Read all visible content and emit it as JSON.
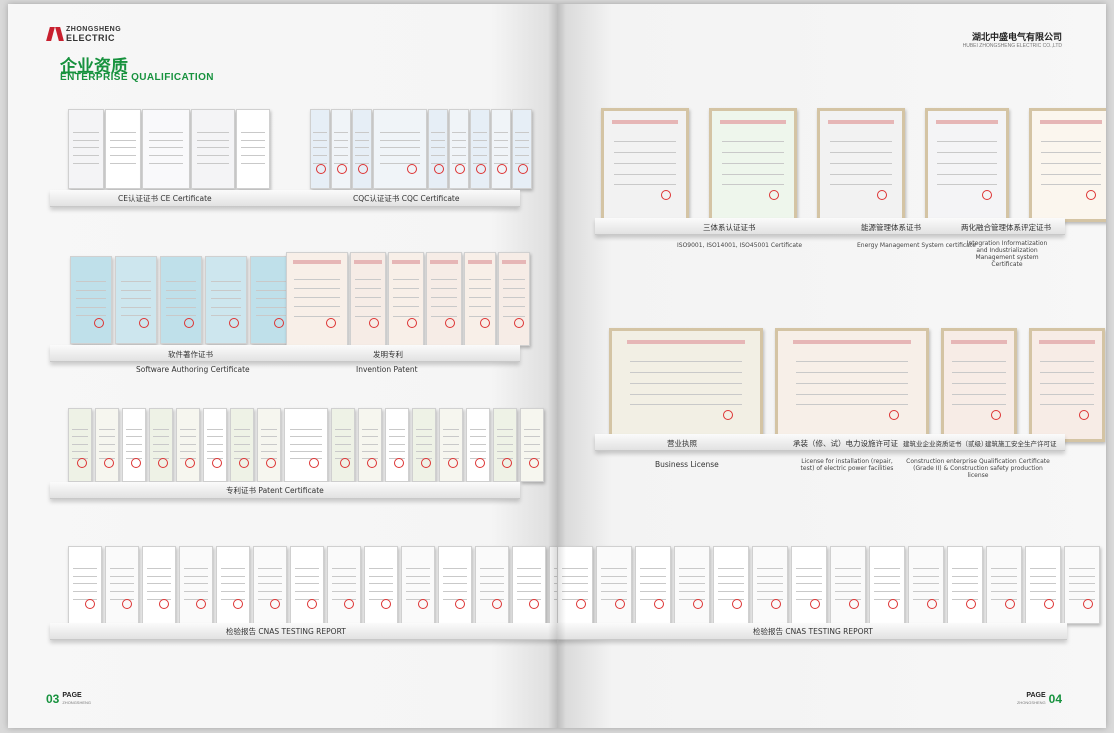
{
  "header": {
    "brand_line1": "ZHONGSHENG",
    "brand_line2": "ELECTRIC",
    "title_cn": "企业资质",
    "title_en": "ENTERPRISE QUALIFICATION",
    "company_cn": "湖北中盛电气有限公司",
    "company_en": "HUBEI ZHONGSHENG ELECTRIC CO.,LTD"
  },
  "left": {
    "row1": [
      "CE认证证书  CE Certificate",
      "CQC认证证书 CQC Certificate"
    ],
    "row2_cn": [
      "软件著作证书",
      "发明专利"
    ],
    "row2_en": [
      "Software Authoring Certificate",
      "Invention Patent"
    ],
    "row3": "专利证书 Patent Certificate",
    "row4": "检验报告  CNAS TESTING REPORT",
    "page_num": "03",
    "page_label": "PAGE",
    "page_sub": "ZHONGSHENG"
  },
  "right": {
    "row1_cn": [
      "三体系认证证书",
      "能源管理体系证书",
      "两化融合管理体系评定证书"
    ],
    "row1_en": [
      "ISO9001, ISO14001, ISO45001 Certificate",
      "Energy Management System certificate",
      "Integration Informatization and Industrialization Management system Certificate"
    ],
    "row2_cn": [
      "营业执照",
      "承装（修、试）电力设施许可证",
      "建筑业企业资质证书（贰级）",
      "建筑施工安全生产许可证"
    ],
    "row2_en": [
      "Business License",
      "License for installation (repair, test) of electric power facilities",
      "Construction enterprise Qualification Certificate (Grade II) & Construction safety production license"
    ],
    "row3": "检验报告  CNAS TESTING REPORT",
    "page_num": "04",
    "page_label": "PAGE",
    "page_sub": "ZHONGSHENG"
  }
}
